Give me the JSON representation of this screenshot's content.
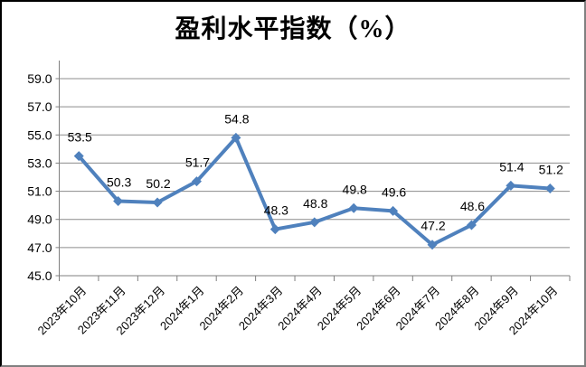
{
  "chart_data": {
    "type": "line",
    "title": "盈利水平指数（%）",
    "categories": [
      "2023年10月",
      "2023年11月",
      "2023年12月",
      "2024年1月",
      "2024年2月",
      "2024年3月",
      "2024年4月",
      "2024年5月",
      "2024年6月",
      "2024年7月",
      "2024年8月",
      "2024年9月",
      "2024年10月"
    ],
    "series": [
      {
        "name": "盈利水平指数",
        "values": [
          53.5,
          50.3,
          50.2,
          51.7,
          54.8,
          48.3,
          48.8,
          49.8,
          49.6,
          47.2,
          48.6,
          51.4,
          51.2
        ]
      }
    ],
    "data_labels": [
      "53.5",
      "50.3",
      "50.2",
      "51.7",
      "54.8",
      "48.3",
      "48.8",
      "49.8",
      "49.6",
      "47.2",
      "48.6",
      "51.4",
      "51.2"
    ],
    "ylim": [
      45.0,
      59.0
    ],
    "ytick_step": 2.0,
    "ytick_labels": [
      "45.0",
      "47.0",
      "49.0",
      "51.0",
      "53.0",
      "55.0",
      "57.0",
      "59.0"
    ],
    "xlabel": "",
    "ylabel": "",
    "grid": "horizontal",
    "legend": "none",
    "marker": "diamond",
    "colors": {
      "line": "#4F81BD",
      "marker": "#4F81BD",
      "gridline": "#8C8C8C",
      "axis": "#7F7F7F",
      "text": "#000000",
      "background": "#FFFFFF"
    }
  }
}
